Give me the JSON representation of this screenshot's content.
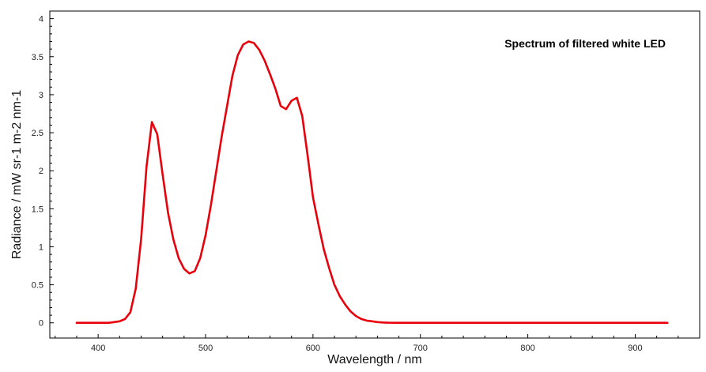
{
  "chart_data": {
    "type": "line",
    "title": "Spectrum of filtered white LED",
    "xlabel": "Wavelength / nm",
    "ylabel": "Radiance / mW sr-1 m-2 nm-1",
    "xlim": [
      355,
      960
    ],
    "ylim": [
      -0.2,
      4.1
    ],
    "x_ticks": [
      400,
      500,
      600,
      700,
      800,
      900
    ],
    "y_ticks": [
      0,
      0.5,
      1,
      1.5,
      2,
      2.5,
      3,
      3.5,
      4
    ],
    "x_tick_labels": [
      "400",
      "500",
      "600",
      "700",
      "800",
      "900"
    ],
    "y_tick_labels": [
      "0",
      "0.5",
      "1",
      "1.5",
      "2",
      "2.5",
      "3",
      "3.5",
      "4"
    ],
    "grid": false,
    "series": [
      {
        "color": "#e8000b",
        "x": [
          380,
          390,
          400,
          410,
          415,
          420,
          425,
          430,
          435,
          440,
          445,
          450,
          455,
          460,
          465,
          470,
          475,
          480,
          485,
          490,
          495,
          500,
          505,
          510,
          515,
          520,
          525,
          530,
          535,
          540,
          545,
          550,
          555,
          560,
          565,
          570,
          575,
          580,
          585,
          590,
          595,
          600,
          605,
          610,
          615,
          620,
          625,
          630,
          635,
          640,
          645,
          650,
          655,
          660,
          665,
          670,
          680,
          700,
          750,
          800,
          850,
          900,
          930
        ],
        "values": [
          0,
          0,
          0,
          0,
          0.01,
          0.02,
          0.05,
          0.14,
          0.45,
          1.1,
          2.05,
          2.64,
          2.48,
          1.95,
          1.45,
          1.1,
          0.85,
          0.71,
          0.65,
          0.68,
          0.85,
          1.15,
          1.55,
          2.0,
          2.45,
          2.85,
          3.25,
          3.52,
          3.66,
          3.7,
          3.68,
          3.59,
          3.45,
          3.27,
          3.08,
          2.85,
          2.81,
          2.92,
          2.96,
          2.72,
          2.2,
          1.65,
          1.3,
          0.97,
          0.72,
          0.5,
          0.35,
          0.24,
          0.15,
          0.09,
          0.05,
          0.03,
          0.02,
          0.01,
          0.005,
          0.002,
          0,
          0,
          0,
          0,
          0,
          0,
          0
        ]
      }
    ]
  }
}
